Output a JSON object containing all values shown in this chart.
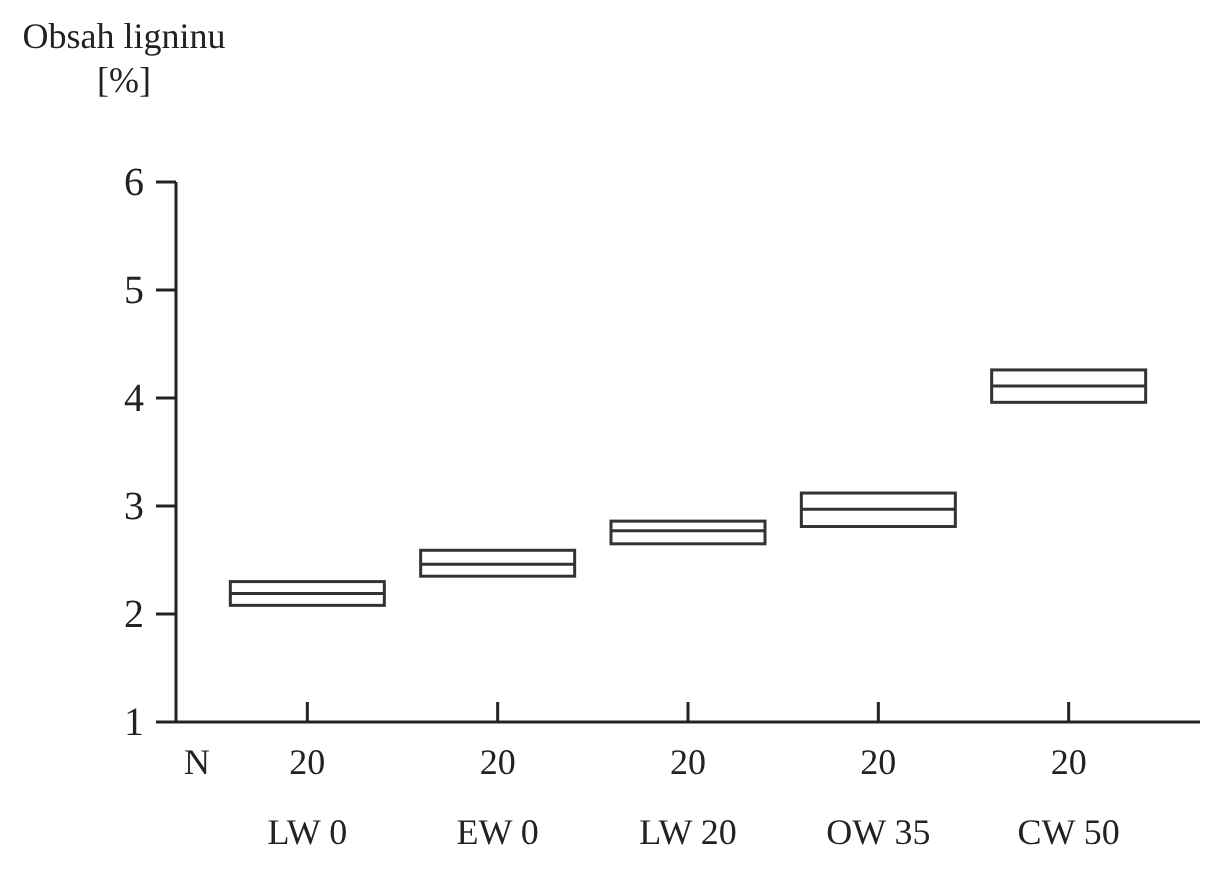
{
  "chart_data": {
    "type": "box",
    "ylabel": "Obsah ligninu [%]",
    "categories": [
      "LW 0",
      "EW 0",
      "LW 20",
      "OW 35",
      "CW 50"
    ],
    "boxes": [
      {
        "low": 2.08,
        "q1": 2.08,
        "median": 2.19,
        "q3": 2.3,
        "high": 2.3
      },
      {
        "low": 2.35,
        "q1": 2.35,
        "median": 2.46,
        "q3": 2.59,
        "high": 2.59
      },
      {
        "low": 2.65,
        "q1": 2.65,
        "median": 2.77,
        "q3": 2.86,
        "high": 2.86
      },
      {
        "low": 2.81,
        "q1": 2.81,
        "median": 2.97,
        "q3": 3.12,
        "high": 3.12
      },
      {
        "low": 3.96,
        "q1": 3.96,
        "median": 4.11,
        "q3": 4.26,
        "high": 4.26
      }
    ],
    "ylim": [
      1,
      6
    ],
    "yticks": [
      1,
      2,
      3,
      4,
      5,
      6
    ],
    "annotations": [
      "N",
      "20",
      "20",
      "20",
      "20",
      "20"
    ]
  }
}
